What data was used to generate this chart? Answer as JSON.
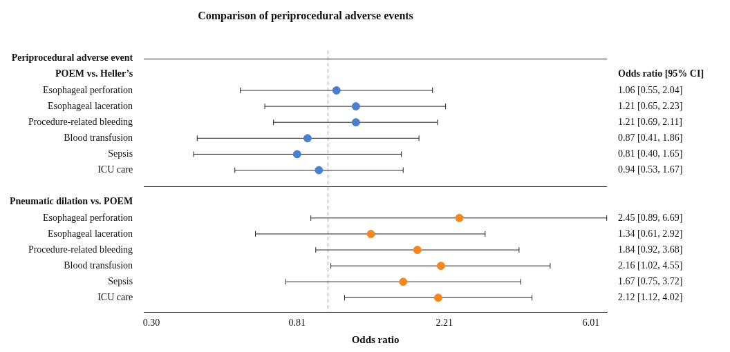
{
  "chart_data": {
    "type": "scatter",
    "orientation": "horizontal",
    "title": "Comparison of periprocedural adverse events",
    "xlabel": "Odds ratio",
    "categories": [
      "Periprocedural adverse event",
      "POEM vs. Heller’s",
      "Esophageal perforation",
      "Esophageal laceration",
      "Procedure-related bleeding",
      "Blood transfusion",
      "Sepsis",
      "ICU care",
      null,
      "Pneumatic dilation vs. POEM",
      "Esophageal perforation",
      "Esophageal laceration",
      "Procedure-related bleeding",
      "Blood transfusion",
      "Sepsis",
      "ICU care"
    ],
    "series": [
      {
        "colors": [
          null,
          null,
          "#4a7fd0",
          "#4a7fd0",
          "#4a7fd0",
          "#4a7fd0",
          "#4a7fd0",
          "#4a7fd0",
          null,
          null,
          "#f5871f",
          "#f5871f",
          "#f5871f",
          "#f5871f",
          "#f5871f",
          "#f5871f"
        ],
        "values": [
          null,
          null,
          1.06,
          1.21,
          1.21,
          0.87,
          0.81,
          0.94,
          null,
          null,
          2.45,
          1.34,
          1.84,
          2.16,
          1.67,
          2.12
        ],
        "errors": [
          null,
          null,
          [
            0.55,
            2.04
          ],
          [
            0.65,
            2.23
          ],
          [
            0.69,
            2.11
          ],
          [
            0.41,
            1.86
          ],
          [
            0.4,
            1.65
          ],
          [
            0.53,
            1.67
          ],
          null,
          null,
          [
            0.89,
            6.69
          ],
          [
            0.61,
            2.92
          ],
          [
            0.92,
            3.68
          ],
          [
            1.02,
            4.55
          ],
          [
            0.75,
            3.72
          ],
          [
            1.12,
            4.02
          ]
        ],
        "value_labels": [
          null,
          null,
          "1.06 [0.55, 2.04]",
          "1.21 [0.65, 2.23]",
          "1.21 [0.69, 2.11]",
          "0.87 [0.41, 1.86]",
          "0.81 [0.40, 1.65]",
          "0.94 [0.53, 1.67]",
          null,
          null,
          "2.45 [0.89, 6.69]",
          "1.34 [0.61, 2.92]",
          "1.84 [0.92, 3.68]",
          "2.16 [1.02, 4.55]",
          "1.67 [0.75, 3.72]",
          "2.12 [1.12, 4.02]"
        ]
      }
    ],
    "log": "x",
    "xlim": [
      0.285,
      6.7
    ],
    "xticks": [
      {
        "value": 0.3,
        "label": "0.30"
      },
      0.81,
      2.21,
      6.01
    ],
    "ref_lines": [
      {
        "axis": "x",
        "value": 1,
        "color": "#aaaaaa",
        "line_style": "dashed"
      }
    ],
    "annotations": [
      "Odds ratio [95% CI]"
    ],
    "marker": "circle",
    "legend": false,
    "grid": false
  }
}
